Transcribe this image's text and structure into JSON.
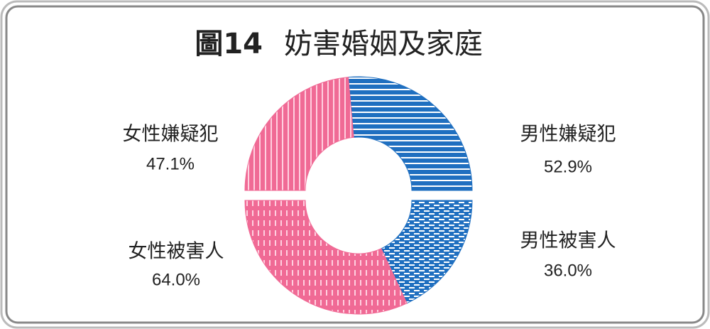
{
  "chart_data": {
    "type": "pie",
    "figure_label": "圖14",
    "title": "妨害婚姻及家庭",
    "series": [
      {
        "categories": [
          "男性嫌疑犯",
          "女性嫌疑犯"
        ],
        "values": [
          52.9,
          47.1
        ],
        "value_labels": [
          "52.9%",
          "47.1%"
        ],
        "colors": [
          "#1f6fc0",
          "#f06a95"
        ]
      },
      {
        "categories": [
          "男性被害人",
          "女性被害人"
        ],
        "values": [
          36.0,
          64.0
        ],
        "value_labels": [
          "36.0%",
          "64.0%"
        ],
        "colors": [
          "#1f6fc0",
          "#f06a95"
        ]
      }
    ]
  }
}
